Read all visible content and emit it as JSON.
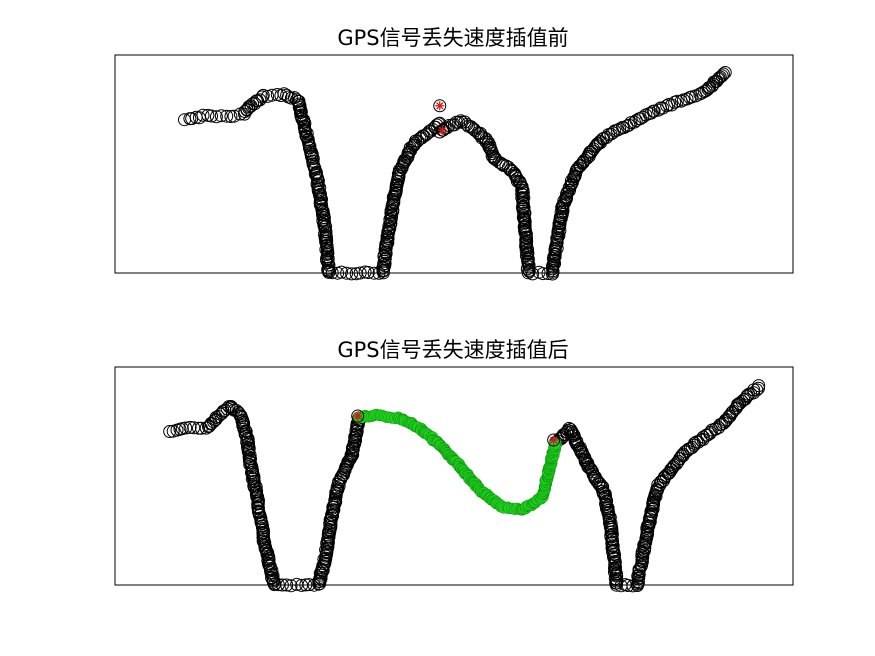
{
  "figure": {
    "background": "#ffffff"
  },
  "chart_data": [
    {
      "type": "scatter",
      "title": "GPS信号丢失速度插值前",
      "xlabel": "",
      "ylabel": "",
      "axes_ticks": false,
      "grid": false,
      "marker": "open-circle",
      "series": [
        {
          "role": "speed-samples",
          "color": "#000000",
          "marker": "circle",
          "filled": false,
          "curve": [
            [
              0.104,
              0.7
            ],
            [
              0.13,
              0.72
            ],
            [
              0.17,
              0.72
            ],
            [
              0.19,
              0.73
            ],
            [
              0.2,
              0.77
            ],
            [
              0.22,
              0.81
            ],
            [
              0.25,
              0.82
            ],
            [
              0.27,
              0.79
            ],
            [
              0.28,
              0.67
            ],
            [
              0.29,
              0.55
            ],
            [
              0.3,
              0.4
            ],
            [
              0.31,
              0.2
            ],
            [
              0.315,
              0.0
            ],
            [
              0.395,
              0.0
            ],
            [
              0.4,
              0.12
            ],
            [
              0.41,
              0.32
            ],
            [
              0.42,
              0.47
            ],
            [
              0.44,
              0.59
            ],
            [
              0.48,
              0.69
            ]
          ],
          "curve2": [
            [
              0.48,
              0.65
            ],
            [
              0.51,
              0.7
            ],
            [
              0.53,
              0.66
            ],
            [
              0.55,
              0.6
            ],
            [
              0.56,
              0.52
            ],
            [
              0.585,
              0.47
            ],
            [
              0.6,
              0.4
            ],
            [
              0.605,
              0.2
            ],
            [
              0.61,
              0.0
            ],
            [
              0.645,
              0.0
            ],
            [
              0.66,
              0.3
            ],
            [
              0.68,
              0.47
            ],
            [
              0.72,
              0.62
            ],
            [
              0.8,
              0.75
            ],
            [
              0.87,
              0.83
            ],
            [
              0.9,
              0.92
            ]
          ]
        },
        {
          "role": "gps-loss-endpoints",
          "color": "#d01c1c",
          "marker": "asterisk",
          "points": [
            [
              0.479,
              0.767
            ],
            [
              0.483,
              0.655
            ]
          ]
        }
      ]
    },
    {
      "type": "scatter",
      "title": "GPS信号丢失速度插值后",
      "xlabel": "",
      "ylabel": "",
      "axes_ticks": false,
      "grid": false,
      "marker": "open-circle",
      "series": [
        {
          "role": "speed-samples",
          "color": "#000000",
          "marker": "circle",
          "filled": false,
          "curve": [
            [
              0.08,
              0.7
            ],
            [
              0.11,
              0.72
            ],
            [
              0.135,
              0.72
            ],
            [
              0.15,
              0.77
            ],
            [
              0.17,
              0.82
            ],
            [
              0.185,
              0.78
            ],
            [
              0.195,
              0.67
            ],
            [
              0.2,
              0.55
            ],
            [
              0.21,
              0.4
            ],
            [
              0.22,
              0.2
            ],
            [
              0.235,
              0.0
            ],
            [
              0.3,
              0.0
            ],
            [
              0.31,
              0.12
            ],
            [
              0.32,
              0.32
            ],
            [
              0.33,
              0.47
            ],
            [
              0.35,
              0.6
            ],
            [
              0.36,
              0.77
            ]
          ],
          "curve2": [
            [
              0.65,
              0.65
            ],
            [
              0.67,
              0.72
            ],
            [
              0.685,
              0.63
            ],
            [
              0.7,
              0.53
            ],
            [
              0.72,
              0.44
            ],
            [
              0.73,
              0.3
            ],
            [
              0.735,
              0.15
            ],
            [
              0.74,
              0.0
            ],
            [
              0.77,
              0.0
            ],
            [
              0.785,
              0.25
            ],
            [
              0.8,
              0.45
            ],
            [
              0.84,
              0.61
            ],
            [
              0.9,
              0.75
            ],
            [
              0.92,
              0.83
            ],
            [
              0.95,
              0.91
            ]
          ]
        },
        {
          "role": "interpolated-speed",
          "color": "#1fd01f",
          "marker": "circle",
          "filled": true,
          "curve": [
            [
              0.36,
              0.77
            ],
            [
              0.39,
              0.78
            ],
            [
              0.42,
              0.765
            ],
            [
              0.45,
              0.72
            ],
            [
              0.48,
              0.64
            ],
            [
              0.51,
              0.54
            ],
            [
              0.54,
              0.43
            ],
            [
              0.57,
              0.36
            ],
            [
              0.6,
              0.345
            ],
            [
              0.63,
              0.4
            ],
            [
              0.65,
              0.65
            ]
          ]
        },
        {
          "role": "gps-loss-endpoints",
          "color": "#d01c1c",
          "marker": "asterisk",
          "points": [
            [
              0.358,
              0.775
            ],
            [
              0.647,
              0.665
            ]
          ]
        }
      ]
    }
  ]
}
